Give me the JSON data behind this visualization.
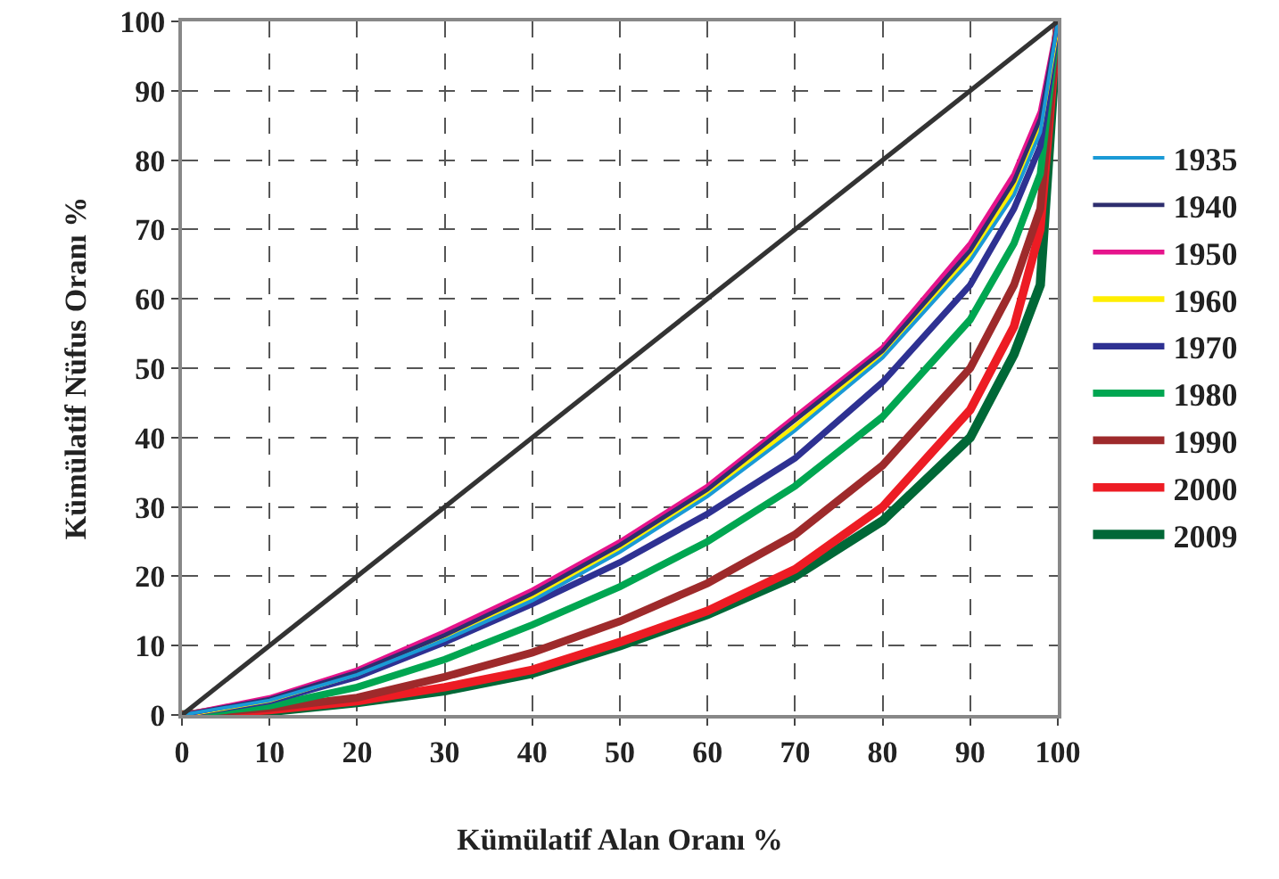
{
  "chart_data": {
    "type": "line",
    "xlabel": "Kümülatif Alan Oranı %",
    "ylabel": "Kümülatif Nüfus Oranı %",
    "x": [
      0,
      10,
      20,
      30,
      40,
      50,
      60,
      70,
      80,
      90,
      95,
      98,
      100
    ],
    "series": [
      {
        "color": "#333333",
        "x": [
          0,
          100
        ],
        "values": [
          0,
          100
        ]
      },
      {
        "name": "1935",
        "color": "#1a9ad6",
        "values": [
          0,
          2.1,
          5.8,
          10.8,
          16.5,
          23.5,
          31.5,
          41,
          51.5,
          65.5,
          75,
          84,
          100
        ]
      },
      {
        "name": "1940",
        "color": "#2e2e6e",
        "values": [
          0,
          2.3,
          6.2,
          11.5,
          17.5,
          24.5,
          32.5,
          42.5,
          52.5,
          67,
          77,
          86,
          100
        ]
      },
      {
        "name": "1950",
        "color": "#e6148c",
        "values": [
          0,
          2.5,
          6.5,
          12,
          18,
          25,
          33,
          43,
          53,
          68,
          78,
          87,
          100
        ]
      },
      {
        "name": "1960",
        "color": "#ffee00",
        "values": [
          0,
          2.2,
          6,
          11.2,
          17,
          24,
          32,
          41.5,
          52,
          66,
          76,
          85,
          100
        ]
      },
      {
        "name": "1970",
        "color": "#2e3192",
        "values": [
          0,
          2,
          5.5,
          10.5,
          16,
          22,
          29,
          37,
          48,
          62,
          73,
          82,
          100
        ]
      },
      {
        "name": "1980",
        "color": "#00a651",
        "values": [
          0,
          1.3,
          4,
          8,
          13,
          18.5,
          25,
          33,
          43,
          57,
          68,
          78,
          100
        ]
      },
      {
        "name": "1990",
        "color": "#9e2a2b",
        "values": [
          0,
          1,
          2.5,
          5.5,
          9,
          13.5,
          19,
          26,
          36,
          50,
          62,
          73,
          100
        ]
      },
      {
        "name": "2000",
        "color": "#ed1c24",
        "values": [
          0,
          0.7,
          2,
          4,
          6.5,
          10.5,
          15,
          21,
          30,
          44,
          56,
          70,
          100
        ]
      },
      {
        "name": "2009",
        "color": "#006837",
        "values": [
          0,
          0.5,
          1.8,
          3.5,
          6,
          10,
          14.5,
          20,
          28,
          40,
          52,
          62,
          100
        ]
      }
    ],
    "xlim": [
      0,
      100
    ],
    "ylim": [
      0,
      100
    ],
    "xticks": [
      0,
      10,
      20,
      30,
      40,
      50,
      60,
      70,
      80,
      90,
      100
    ],
    "yticks": [
      0,
      10,
      20,
      30,
      40,
      50,
      60,
      70,
      80,
      90,
      100
    ],
    "grid": true,
    "legend": "right",
    "marker": "none",
    "line_style": "solid"
  }
}
